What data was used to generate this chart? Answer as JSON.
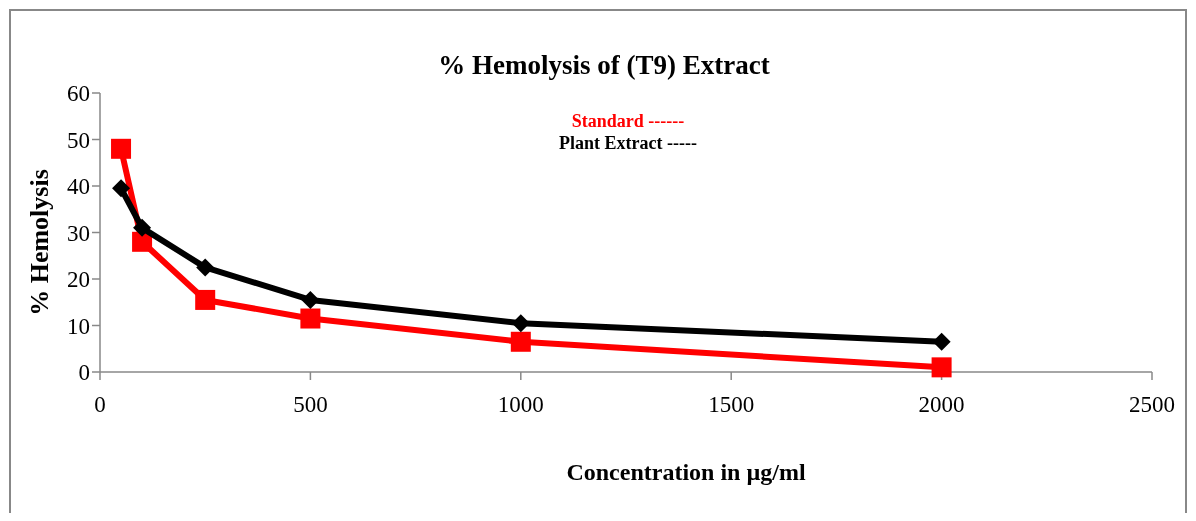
{
  "chart_data": {
    "type": "line",
    "title": "% Hemolysis of (T9) Extract",
    "xlabel": "Concentration in µg/ml",
    "ylabel": "% Hemolysis",
    "xlim": [
      0,
      2500
    ],
    "xticks": [
      0,
      500,
      1000,
      1500,
      2000,
      2500
    ],
    "ylim": [
      0,
      60
    ],
    "yticks": [
      0,
      10,
      20,
      30,
      40,
      50,
      60
    ],
    "grid": false,
    "legend": "top",
    "series": [
      {
        "name": "Standard ------",
        "color": "#ff0000",
        "marker": "square",
        "x": [
          50,
          100,
          250,
          500,
          1000,
          2000
        ],
        "values": [
          48,
          28,
          15.5,
          11.5,
          6.5,
          1
        ]
      },
      {
        "name": "Plant Extract -----",
        "color": "#000000",
        "marker": "diamond",
        "x": [
          50,
          100,
          250,
          500,
          1000,
          2000
        ],
        "values": [
          39.5,
          31,
          22.5,
          15.5,
          10.5,
          6.5
        ]
      }
    ]
  }
}
